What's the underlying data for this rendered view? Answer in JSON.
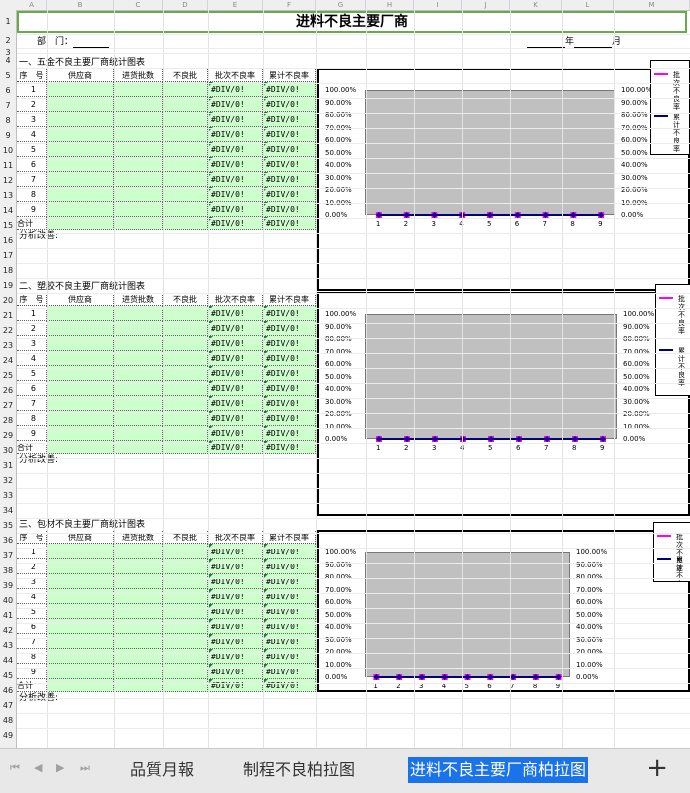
{
  "title": "进料不良主要厂商",
  "columns": [
    "A",
    "B",
    "C",
    "D",
    "E",
    "F",
    "G",
    "H",
    "I",
    "J",
    "K",
    "L",
    "M"
  ],
  "rows": [
    "1",
    "2",
    "3",
    "4",
    "5",
    "6",
    "7",
    "8",
    "9",
    "10",
    "11",
    "12",
    "13",
    "14",
    "15",
    "16",
    "17",
    "18",
    "19",
    "20",
    "21",
    "22",
    "23",
    "24",
    "25",
    "26",
    "27",
    "28",
    "29",
    "30",
    "31",
    "32",
    "33",
    "34",
    "35",
    "36",
    "37",
    "38",
    "39",
    "40",
    "41",
    "42",
    "43",
    "44",
    "45",
    "46",
    "47",
    "48",
    "49"
  ],
  "header": {
    "dept_label": "部　门：",
    "year_label": "年",
    "month_label": "月"
  },
  "table_headers": [
    "序　号",
    "供应商",
    "进货批数",
    "不良批",
    "批次不良率",
    "累计不良率"
  ],
  "indices": [
    "1",
    "2",
    "3",
    "4",
    "5",
    "6",
    "7",
    "8",
    "9"
  ],
  "div_error": "#DIV/0!",
  "total_label": "合计",
  "analysis_label": "分析改善:",
  "sections": [
    {
      "title": "一、五金不良主要厂商统计图表"
    },
    {
      "title": "二、塑胶不良主要厂商统计图表"
    },
    {
      "title": "三、包材不良主要厂商统计图表"
    }
  ],
  "chart_data": [
    {
      "type": "line",
      "x": [
        1,
        2,
        3,
        4,
        5,
        6,
        7,
        8,
        9
      ],
      "series": [
        {
          "name": "批次不良率",
          "color": "#ff00ff",
          "values": [
            0,
            0,
            0,
            0,
            0,
            0,
            0,
            0,
            0
          ]
        },
        {
          "name": "累计不良率",
          "color": "#000080",
          "values": [
            0,
            0,
            0,
            0,
            0,
            0,
            0,
            0,
            0
          ]
        }
      ],
      "yticks": [
        "100.00%",
        "90.00%",
        "80.00%",
        "70.00%",
        "60.00%",
        "50.00%",
        "40.00%",
        "30.00%",
        "20.00%",
        "10.00%",
        "0.00%"
      ],
      "ylim": [
        0,
        1
      ],
      "legend": "right"
    },
    {
      "type": "line",
      "x": [
        1,
        2,
        3,
        4,
        5,
        6,
        7,
        8,
        9
      ],
      "series": [
        {
          "name": "批次不良率",
          "color": "#ff00ff",
          "values": [
            0,
            0,
            0,
            0,
            0,
            0,
            0,
            0,
            0
          ]
        },
        {
          "name": "累计不良率",
          "color": "#000080",
          "values": [
            0,
            0,
            0,
            0,
            0,
            0,
            0,
            0,
            0
          ]
        }
      ],
      "yticks": [
        "100.00%",
        "90.00%",
        "80.00%",
        "70.00%",
        "60.00%",
        "50.00%",
        "40.00%",
        "30.00%",
        "20.00%",
        "10.00%",
        "0.00%"
      ],
      "ylim": [
        0,
        1
      ],
      "legend": "right"
    },
    {
      "type": "line",
      "x": [
        1,
        2,
        3,
        4,
        5,
        6,
        7,
        8,
        9
      ],
      "series": [
        {
          "name": "批次不良率",
          "color": "#ff00ff",
          "values": [
            0,
            0,
            0,
            0,
            0,
            0,
            0,
            0,
            0
          ]
        },
        {
          "name": "累计不良率",
          "color": "#000080",
          "values": [
            0,
            0,
            0,
            0,
            0,
            0,
            0,
            0,
            0
          ]
        }
      ],
      "yticks": [
        "100.00%",
        "90.00%",
        "80.00%",
        "70.00%",
        "60.00%",
        "50.00%",
        "40.00%",
        "30.00%",
        "20.00%",
        "10.00%",
        "0.00%"
      ],
      "ylim": [
        0,
        1
      ],
      "legend": "right"
    }
  ],
  "sheet_tabs": [
    {
      "label": "品質月報",
      "active": false
    },
    {
      "label": "制程不良柏拉图",
      "active": false
    },
    {
      "label": "进料不良主要厂商柏拉图",
      "active": true
    }
  ],
  "add_sheet_label": "+"
}
